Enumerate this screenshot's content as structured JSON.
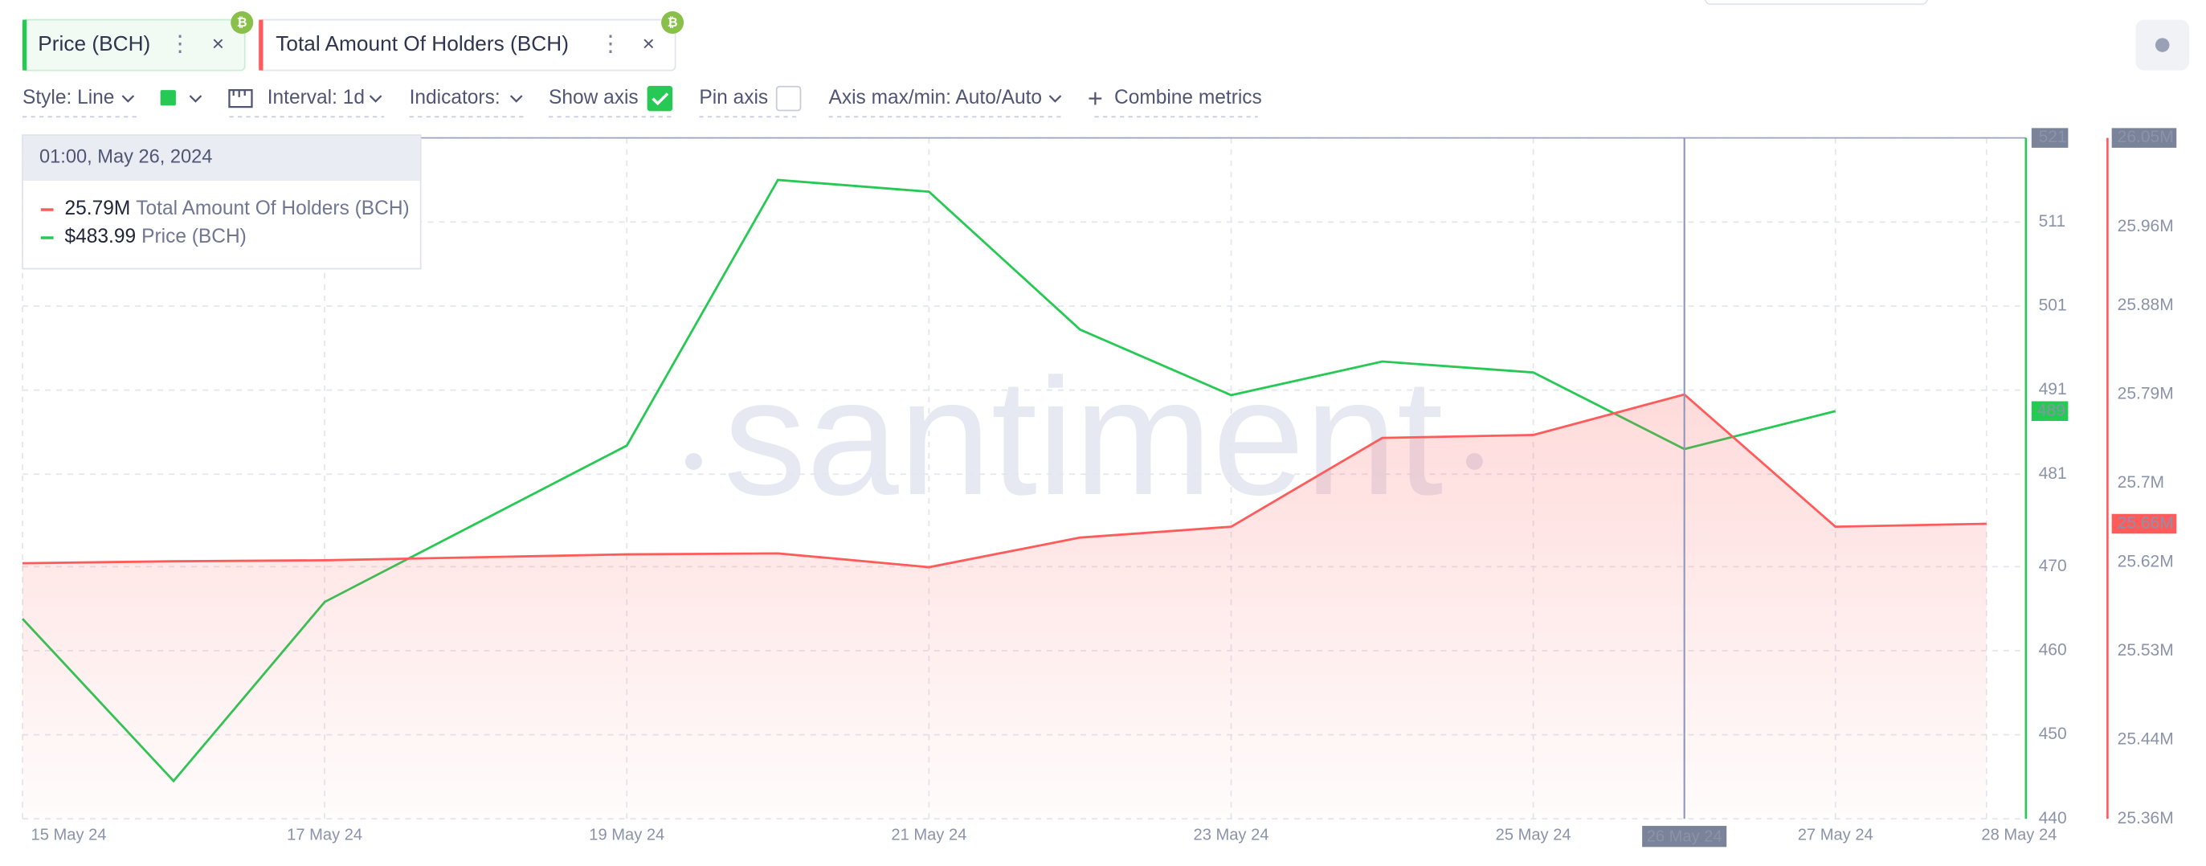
{
  "chart_data": {
    "type": "line",
    "categories": [
      "15 May 24",
      null,
      "17 May 24",
      null,
      "19 May 24",
      null,
      "21 May 24",
      null,
      "23 May 24",
      null,
      "25 May 24",
      "26 May 24",
      "27 May 24",
      "28 May 24"
    ],
    "series": [
      {
        "name": "Price (BCH)",
        "color": "#26c953",
        "axis": "y",
        "values": [
          463.8,
          444.5,
          465.8,
          475.1,
          484.4,
          516.0,
          514.6,
          498.2,
          490.4,
          494.4,
          493.1,
          483.99,
          488.5,
          null
        ],
        "value_labels": [
          null,
          null,
          null,
          null,
          null,
          null,
          null,
          null,
          null,
          null,
          null,
          "$483.99",
          "489",
          null
        ]
      },
      {
        "name": "Total Amount Of Holders (BCH)",
        "color": "#ff5b5b",
        "axis": "y2",
        "values": [
          25.619,
          25.621,
          25.622,
          25.625,
          25.628,
          25.629,
          25.615,
          25.645,
          25.656,
          25.746,
          25.749,
          25.79,
          25.656,
          25.659
        ],
        "value_labels": [
          null,
          null,
          null,
          null,
          null,
          null,
          null,
          null,
          null,
          null,
          null,
          "25.79M",
          null,
          "25.66M"
        ]
      }
    ],
    "ylim": [
      440,
      521
    ],
    "yticks": [
      440,
      450,
      460,
      470,
      481,
      491,
      501,
      511,
      521
    ],
    "y2lim": [
      25.36,
      26.05
    ],
    "y2ticks": [
      {
        "value": 25.36,
        "label": "25.36M"
      },
      {
        "value": 25.44,
        "label": "25.44M"
      },
      {
        "value": 25.53,
        "label": "25.53M"
      },
      {
        "value": 25.62,
        "label": "25.62M"
      },
      {
        "value": 25.7,
        "label": "25.7M"
      },
      {
        "value": 25.79,
        "label": "25.79M"
      },
      {
        "value": 25.88,
        "label": "25.88M"
      },
      {
        "value": 25.96,
        "label": "25.96M"
      },
      {
        "value": 26.05,
        "label": "26.05M"
      }
    ],
    "grid": true,
    "crosshair_index": 11,
    "watermark": "santiment"
  },
  "tooltip": {
    "title": "01:00, May 26, 2024"
  },
  "toolbar": {
    "style": "Style: Line",
    "interval": "Interval: 1d",
    "indicators": "Indicators:",
    "show_axis": "Show axis",
    "pin_axis": "Pin axis",
    "axis_minmax": "Axis max/min: Auto/Auto",
    "combine": "Combine metrics"
  }
}
